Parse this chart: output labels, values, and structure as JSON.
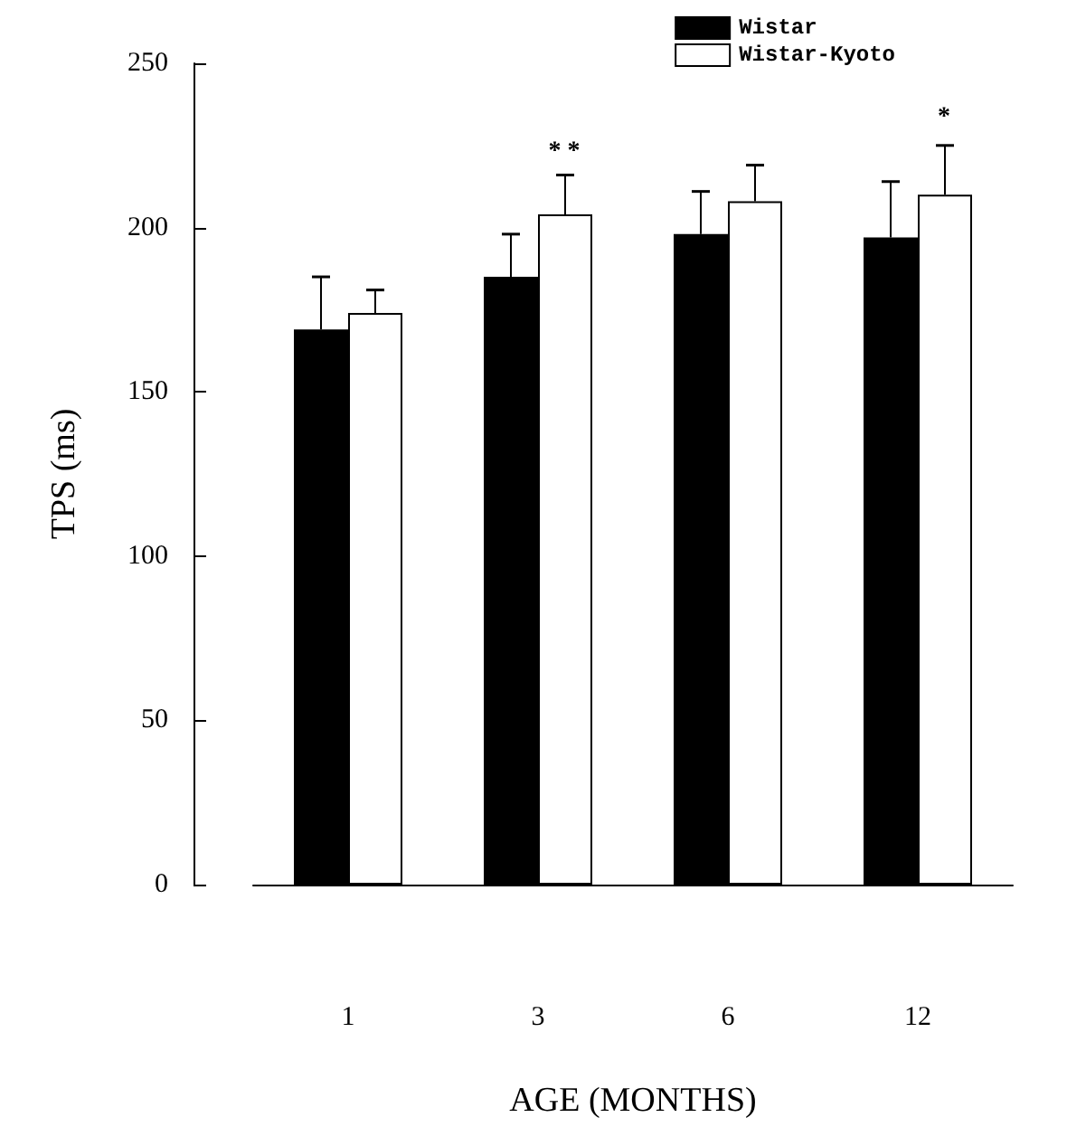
{
  "chart_data": {
    "type": "bar",
    "xlabel": "AGE (MONTHS)",
    "ylabel": "TPS (ms)",
    "categories": [
      "1",
      "3",
      "6",
      "12"
    ],
    "series": [
      {
        "name": "Wistar",
        "color": "#000000",
        "values": [
          169,
          185,
          198,
          197
        ],
        "errors": [
          [
            169,
            185
          ],
          [
            185,
            198
          ],
          [
            198,
            211
          ],
          [
            197,
            214
          ]
        ]
      },
      {
        "name": "Wistar-Kyoto",
        "color": "#ffffff",
        "values": [
          174,
          204,
          208,
          210
        ],
        "errors": [
          [
            174,
            181
          ],
          [
            204,
            216
          ],
          [
            208,
            219
          ],
          [
            210,
            225
          ]
        ]
      }
    ],
    "ylim": [
      0,
      250
    ],
    "yticks": [
      0,
      50,
      100,
      150,
      200,
      250
    ],
    "grid": false,
    "legend": "top right",
    "annotations": [
      "* *",
      "*"
    ]
  }
}
